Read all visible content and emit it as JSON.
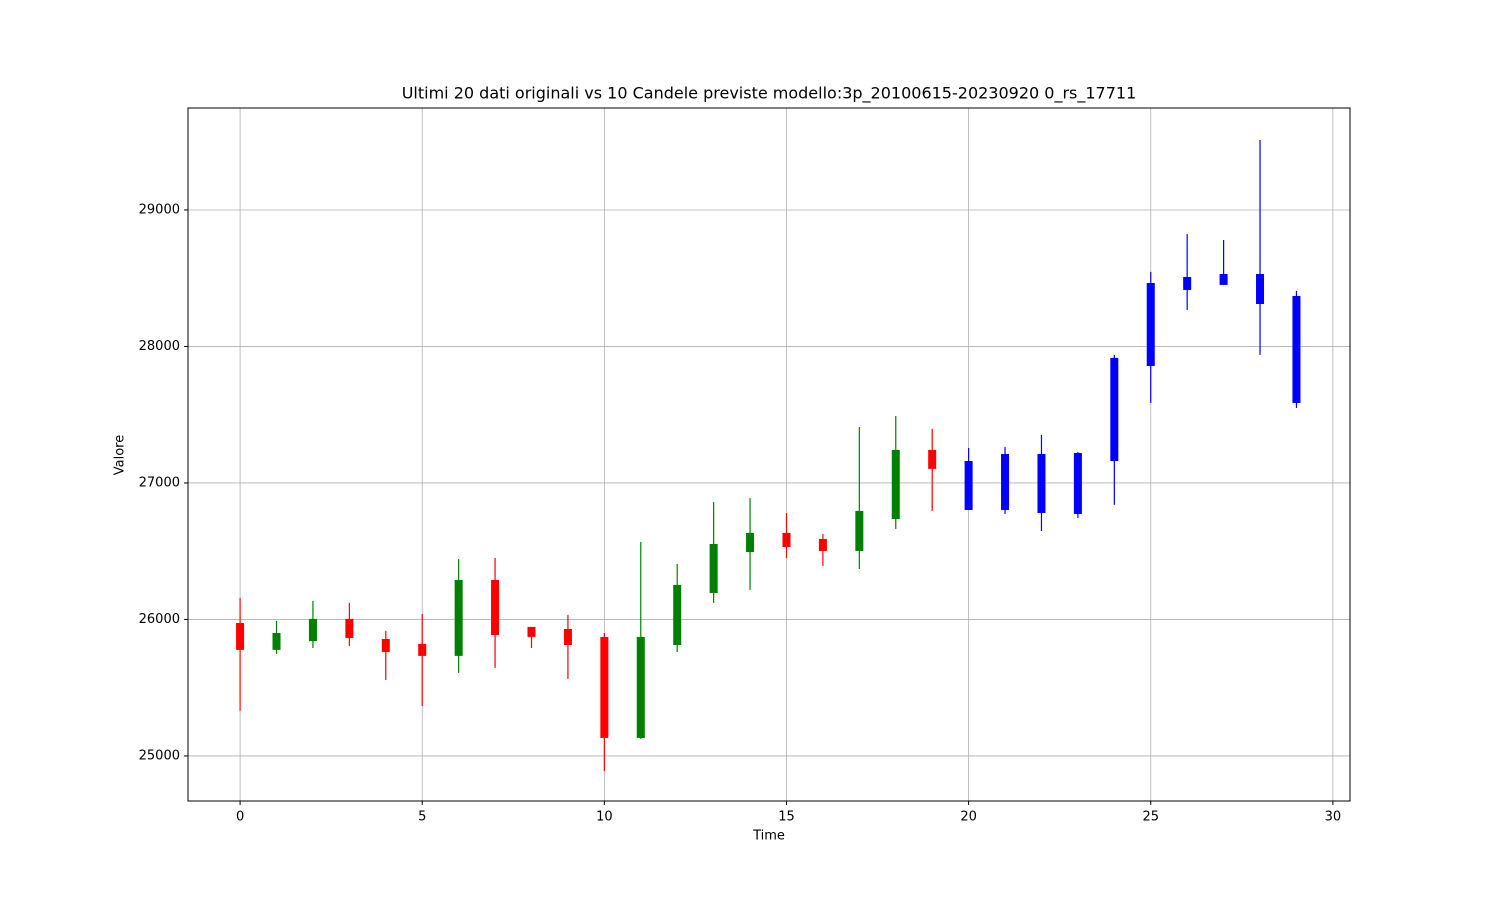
{
  "chart_data": {
    "type": "candlestick",
    "title": "Ultimi 20 dati originali vs 10 Candele previste modello:3p_20100615-20230920 0_rs_17711",
    "x_label": "Time",
    "y_label": "Valore",
    "x": [
      0,
      1,
      2,
      3,
      4,
      5,
      6,
      7,
      8,
      9,
      10,
      11,
      12,
      13,
      14,
      15,
      16,
      17,
      18,
      19,
      20,
      21,
      22,
      23,
      24,
      25,
      26,
      27,
      28,
      29
    ],
    "open": [
      25974,
      25777,
      25842,
      26004,
      25857,
      25821,
      25733,
      26289,
      25945,
      25930,
      25872,
      25132,
      25813,
      26194,
      26494,
      26634,
      26590,
      26502,
      26736,
      27242,
      27161,
      27212,
      27212,
      27220,
      27916,
      28465,
      28509,
      28531,
      28531,
      28370
    ],
    "high": [
      26158,
      25989,
      26136,
      26121,
      25916,
      26040,
      26443,
      26451,
      25945,
      26033,
      25901,
      26568,
      26407,
      26861,
      26890,
      26780,
      26626,
      27410,
      27491,
      27396,
      27256,
      27264,
      27352,
      27227,
      27938,
      28546,
      28824,
      28780,
      29513,
      28407
    ],
    "low": [
      25330,
      25747,
      25791,
      25806,
      25557,
      25366,
      25608,
      25645,
      25791,
      25564,
      24890,
      25125,
      25762,
      26121,
      26216,
      26451,
      26392,
      26370,
      26663,
      26795,
      26802,
      26773,
      26648,
      26744,
      26839,
      27586,
      28267,
      28451,
      27938,
      27549
    ],
    "close": [
      25777,
      25901,
      26004,
      25864,
      25762,
      25733,
      26289,
      25886,
      25872,
      25813,
      25132,
      25872,
      26253,
      26553,
      26634,
      26531,
      26502,
      26795,
      27242,
      27103,
      26802,
      26802,
      26780,
      26773,
      27161,
      27857,
      28414,
      28451,
      28311,
      27586
    ],
    "colors": [
      "red",
      "green",
      "green",
      "red",
      "red",
      "red",
      "green",
      "red",
      "red",
      "red",
      "red",
      "green",
      "green",
      "green",
      "green",
      "red",
      "red",
      "green",
      "green",
      "red",
      "blue",
      "blue",
      "blue",
      "blue",
      "blue",
      "blue",
      "blue",
      "blue",
      "blue",
      "blue"
    ],
    "xlim": [
      -1.43,
      30.47
    ],
    "ylim": [
      24670,
      29747
    ],
    "xticks": [
      0,
      5,
      10,
      15,
      20,
      25,
      30
    ],
    "yticks": [
      25000,
      26000,
      27000,
      28000,
      29000
    ],
    "grid": true
  }
}
